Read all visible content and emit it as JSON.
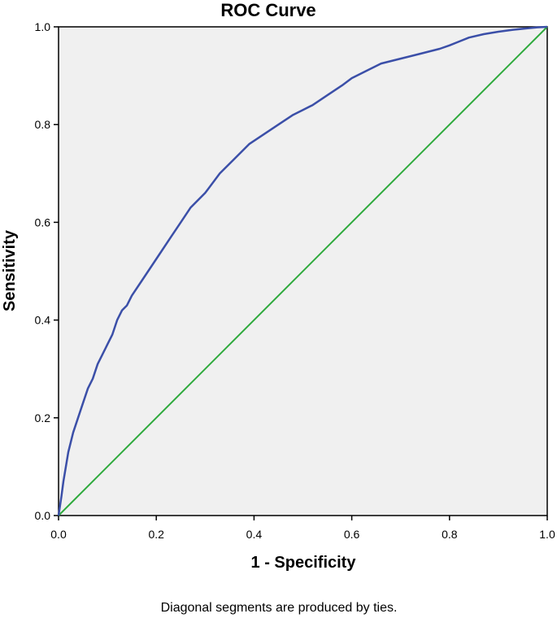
{
  "chart_data": {
    "type": "line",
    "title": "ROC Curve",
    "xlabel": "1 - Specificity",
    "ylabel": "Sensitivity",
    "xlim": [
      0.0,
      1.0
    ],
    "ylim": [
      0.0,
      1.0
    ],
    "x_ticks": [
      "0.0",
      "0.2",
      "0.4",
      "0.6",
      "0.8",
      "1.0"
    ],
    "y_ticks": [
      "0.0",
      "0.2",
      "0.4",
      "0.6",
      "0.8",
      "1.0"
    ],
    "grid": false,
    "background_color": "#f0f0f0",
    "footnote": "Diagonal segments are produced by ties.",
    "series": [
      {
        "color": "#3b4fa8",
        "x": [
          0.0,
          0.003,
          0.006,
          0.01,
          0.015,
          0.02,
          0.03,
          0.04,
          0.05,
          0.06,
          0.07,
          0.08,
          0.09,
          0.1,
          0.11,
          0.12,
          0.13,
          0.14,
          0.15,
          0.17,
          0.19,
          0.21,
          0.23,
          0.25,
          0.27,
          0.3,
          0.33,
          0.36,
          0.39,
          0.42,
          0.45,
          0.48,
          0.5,
          0.52,
          0.55,
          0.58,
          0.6,
          0.63,
          0.66,
          0.7,
          0.74,
          0.78,
          0.8,
          0.82,
          0.84,
          0.87,
          0.9,
          0.93,
          0.96,
          0.98,
          1.0
        ],
        "y": [
          0.0,
          0.02,
          0.04,
          0.07,
          0.1,
          0.13,
          0.17,
          0.2,
          0.23,
          0.26,
          0.28,
          0.31,
          0.33,
          0.35,
          0.37,
          0.4,
          0.42,
          0.43,
          0.45,
          0.48,
          0.51,
          0.54,
          0.57,
          0.6,
          0.63,
          0.66,
          0.7,
          0.73,
          0.76,
          0.78,
          0.8,
          0.82,
          0.83,
          0.84,
          0.86,
          0.88,
          0.895,
          0.91,
          0.925,
          0.935,
          0.945,
          0.955,
          0.962,
          0.97,
          0.978,
          0.985,
          0.99,
          0.994,
          0.997,
          0.999,
          1.0
        ]
      },
      {
        "color": "#2eaa3c",
        "x": [
          0.0,
          1.0
        ],
        "y": [
          0.0,
          1.0
        ]
      }
    ]
  }
}
